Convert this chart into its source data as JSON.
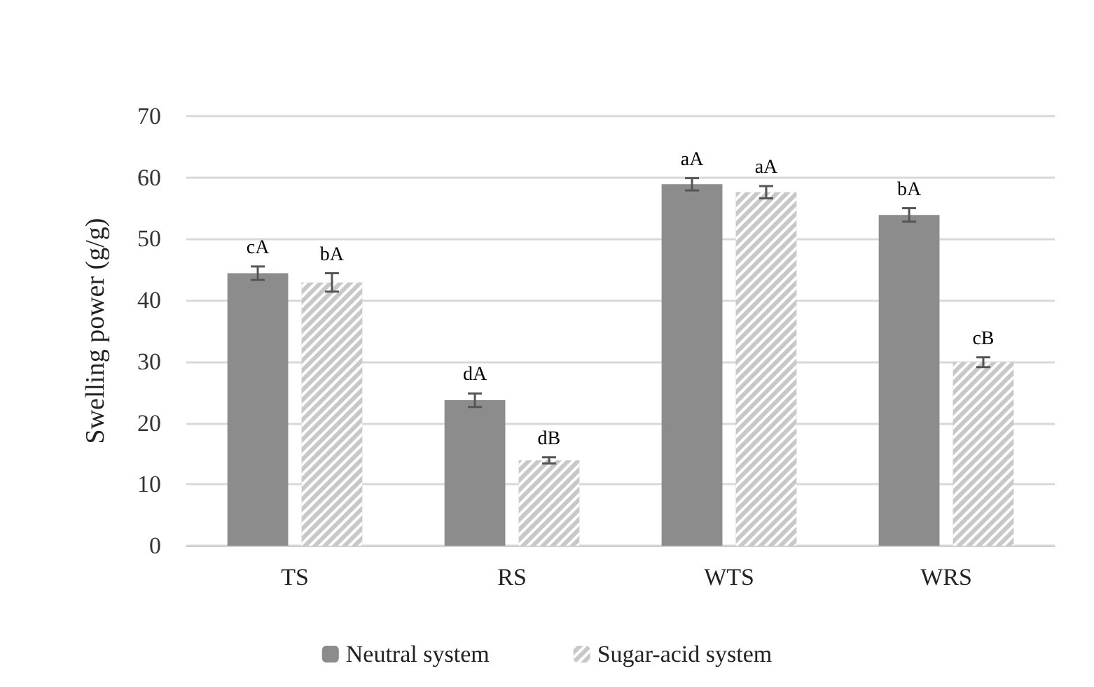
{
  "chart_data": {
    "type": "bar",
    "ylabel": "Swelling power (g/g)",
    "categories": [
      "TS",
      "RS",
      "WTS",
      "WRS"
    ],
    "ylim": [
      0,
      70
    ],
    "yticks": [
      0,
      10,
      20,
      30,
      40,
      50,
      60,
      70
    ],
    "grid": "y",
    "legend": "bottom",
    "series": [
      {
        "name": "Neutral system",
        "color": "#8c8c8c",
        "values": [
          44.4,
          23.7,
          58.9,
          53.9
        ],
        "errors": [
          1.1,
          1.1,
          1.0,
          1.1
        ],
        "value_labels": [
          "cA",
          "dA",
          "aA",
          "bA"
        ]
      },
      {
        "name": "Sugar-acid system",
        "color": "#c8c8c8",
        "values": [
          42.9,
          13.9,
          57.6,
          29.9
        ],
        "errors": [
          1.5,
          0.5,
          1.0,
          0.8
        ],
        "value_labels": [
          "bA",
          "dB",
          "aA",
          "cB"
        ]
      }
    ]
  }
}
